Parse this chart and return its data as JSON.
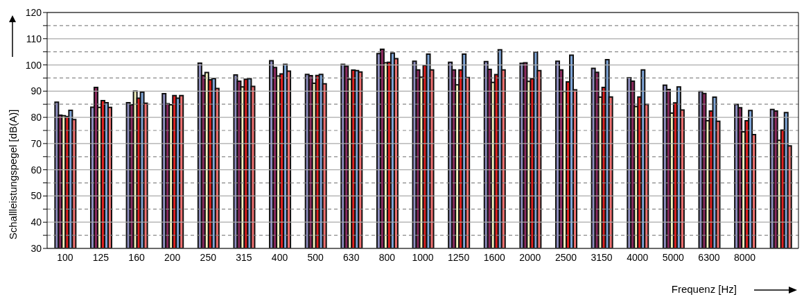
{
  "chart_data": {
    "type": "bar",
    "xlabel": "Frequenz [Hz]",
    "ylabel": "Schallleistungspegel [dB(A)]",
    "categories": [
      "100",
      "125",
      "160",
      "200",
      "250",
      "315",
      "400",
      "500",
      "630",
      "800",
      "1000",
      "1250",
      "1600",
      "2000",
      "2500",
      "3150",
      "4000",
      "5000",
      "6300",
      "8000",
      null
    ],
    "series": [
      {
        "color": "#8e8ec0",
        "values": [
          85.8,
          83.9,
          85.6,
          89,
          100.7,
          96.2,
          101.6,
          96.4,
          100.2,
          104.3,
          101.4,
          101,
          101.3,
          100.6,
          101.4,
          98.7,
          95.1,
          92.3,
          89.9,
          84.9,
          83
        ]
      },
      {
        "color": "#8b2a5e",
        "values": [
          80.8,
          91.4,
          84.8,
          85.2,
          96,
          93.8,
          99,
          95.9,
          99.5,
          106,
          98.1,
          98.1,
          98.3,
          100.8,
          98.1,
          97.2,
          93.8,
          90.6,
          89.1,
          83.7,
          82.4
        ]
      },
      {
        "color": "#f5f5c0",
        "values": [
          80.6,
          83.8,
          90,
          84.8,
          97.1,
          91.6,
          95.8,
          93,
          94.5,
          100.8,
          95.3,
          92.4,
          93.3,
          93.7,
          89.9,
          87.7,
          84.1,
          81.6,
          78.7,
          74.5,
          71.2
        ]
      },
      {
        "color": "#e02020",
        "values": [
          80.3,
          86.4,
          87.3,
          88.3,
          94.3,
          94.5,
          96.6,
          96,
          98,
          101,
          99.8,
          98.1,
          96.3,
          94.7,
          93.5,
          91.4,
          87.8,
          85.5,
          82.4,
          78.7,
          75.1
        ]
      },
      {
        "color": "#7fa6d9",
        "values": [
          82.7,
          85.6,
          89.6,
          87.3,
          94.8,
          94.7,
          100.2,
          96.4,
          97.8,
          104.5,
          104.1,
          104.1,
          105.8,
          104.9,
          103.7,
          102,
          98.1,
          91.6,
          87.7,
          82.6,
          81.8
        ]
      },
      {
        "color": "#f07070",
        "values": [
          79.2,
          83.8,
          85.4,
          88.3,
          91,
          91.8,
          97.6,
          92.8,
          97.3,
          102.4,
          98.1,
          95.2,
          98.1,
          97.8,
          90.5,
          87.8,
          84.9,
          82.8,
          78.5,
          73.4,
          69.1
        ]
      }
    ],
    "ylim": [
      30,
      120
    ],
    "yticks": [
      30,
      {
        "value": 35,
        "label": null
      },
      40,
      {
        "value": 45,
        "label": null
      },
      50,
      {
        "value": 55,
        "label": null
      },
      60,
      {
        "value": 65,
        "label": null
      },
      70,
      {
        "value": 75,
        "label": null
      },
      80,
      {
        "value": 85,
        "label": null
      },
      90,
      {
        "value": 95,
        "label": null
      },
      100,
      {
        "value": 105,
        "label": null
      },
      110,
      {
        "value": 115,
        "label": null
      },
      120
    ],
    "grid": true,
    "legend": false
  }
}
